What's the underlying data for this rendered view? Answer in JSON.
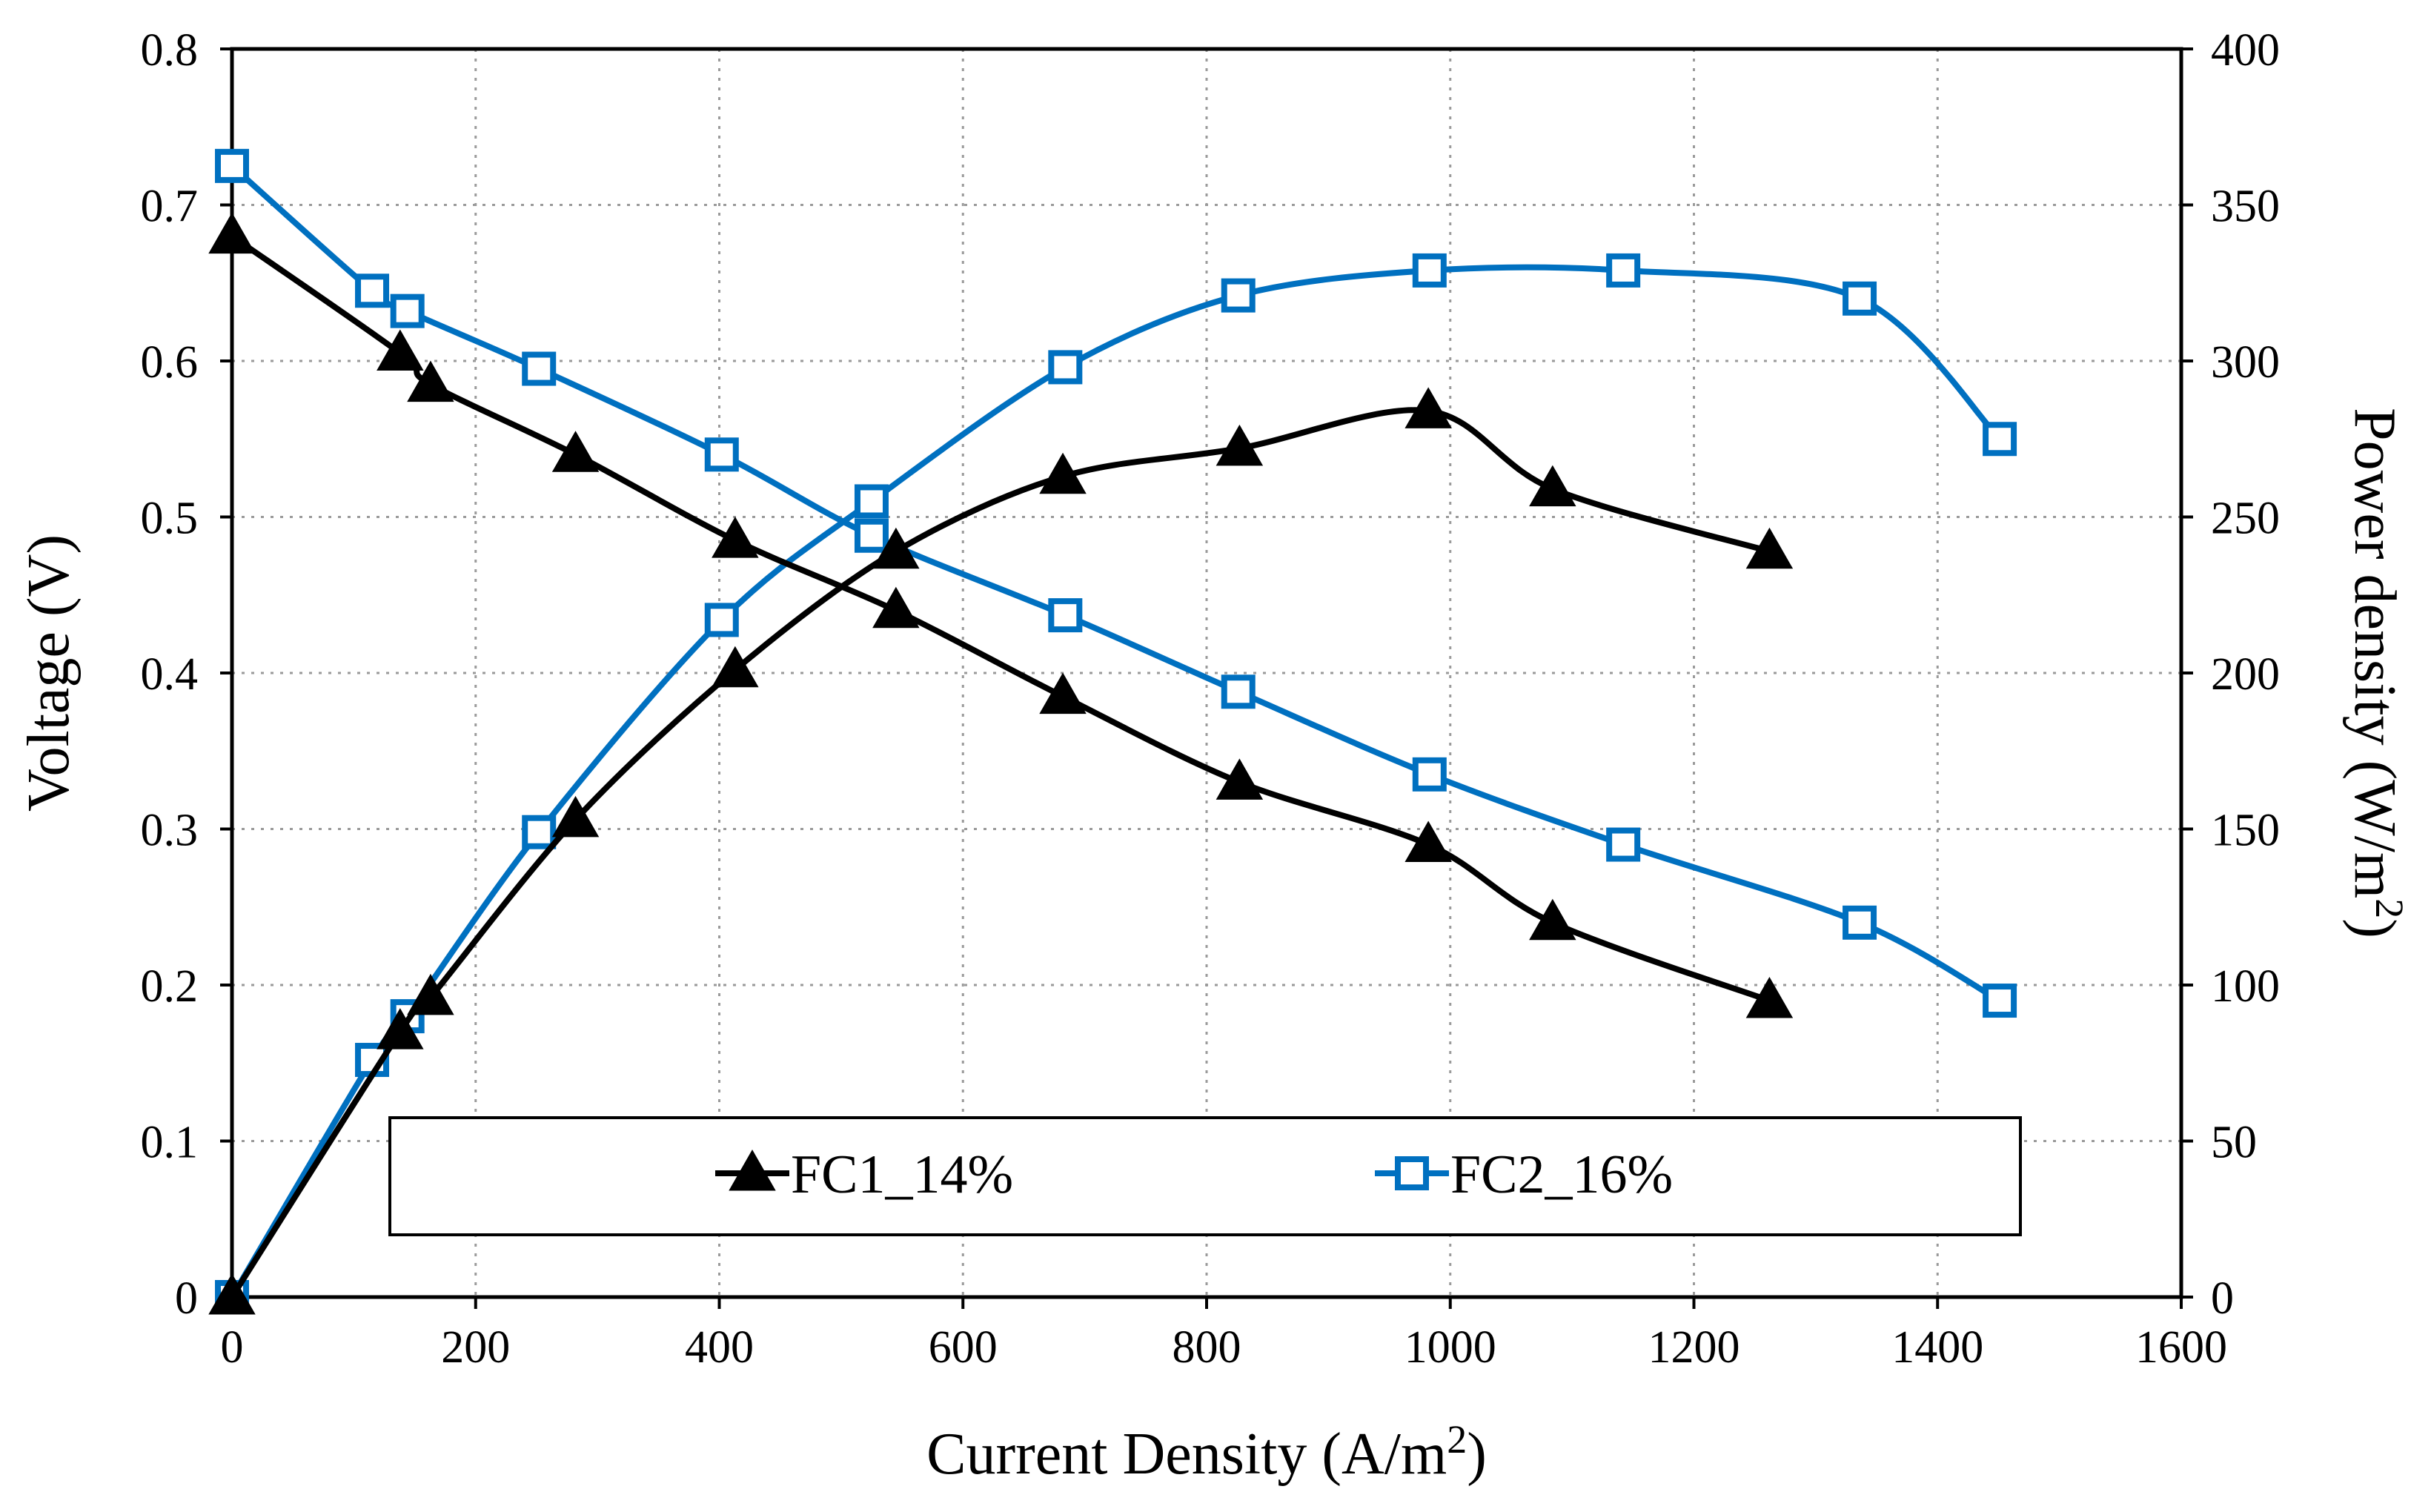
{
  "chart_data": {
    "type": "line",
    "title": "",
    "xlabel": "Current Density (A/m",
    "xlabel_sup": "2",
    "xlabel_end": ")",
    "ylabel": "Voltage (V)",
    "y2label": "Power density (W/m",
    "y2label_sup": "2",
    "y2label_end": ")",
    "xlim": [
      0,
      1600
    ],
    "ylim": [
      0,
      0.8
    ],
    "y2lim": [
      0,
      400
    ],
    "x_ticks": [
      "0",
      "200",
      "400",
      "600",
      "800",
      "1000",
      "1200",
      "1400",
      "1600"
    ],
    "y_ticks": [
      "0",
      "0.1",
      "0.2",
      "0.3",
      "0.4",
      "0.5",
      "0.6",
      "0.7",
      "0.8"
    ],
    "y2_ticks": [
      "0",
      "50",
      "100",
      "150",
      "200",
      "250",
      "300",
      "350",
      "400"
    ],
    "grid": true,
    "legend_position": "bottom-center",
    "series": [
      {
        "name": "FC1_14%",
        "color": "#000000",
        "marker": "triangle",
        "voltage": {
          "x": [
            0,
            138,
            163,
            282,
            413,
            545,
            682,
            827,
            982,
            1084,
            1262
          ],
          "y": [
            0.68,
            0.605,
            0.585,
            0.54,
            0.485,
            0.44,
            0.385,
            0.33,
            0.29,
            0.24,
            0.19
          ]
        },
        "power": {
          "x": [
            0,
            138,
            163,
            282,
            413,
            545,
            682,
            827,
            982,
            1084,
            1262
          ],
          "y": [
            0,
            85,
            96,
            153,
            201,
            239,
            263,
            272,
            284,
            259,
            239
          ]
        }
      },
      {
        "name": "FC2_16%",
        "color": "#0070c0",
        "marker": "square",
        "voltage": {
          "x": [
            0,
            115,
            144,
            252,
            402,
            525,
            684,
            826,
            983,
            1142,
            1336,
            1451
          ],
          "y": [
            0.725,
            0.645,
            0.632,
            0.595,
            0.54,
            0.488,
            0.437,
            0.388,
            0.335,
            0.29,
            0.24,
            0.19
          ]
        },
        "power": {
          "x": [
            0,
            115,
            144,
            252,
            402,
            525,
            684,
            826,
            983,
            1142,
            1336,
            1451
          ],
          "y": [
            0,
            76,
            90,
            149,
            217,
            255,
            298,
            321,
            329,
            329,
            320,
            275
          ]
        }
      }
    ]
  }
}
